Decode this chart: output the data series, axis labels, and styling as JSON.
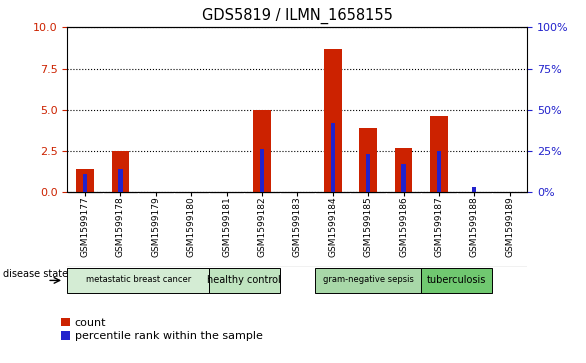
{
  "title": "GDS5819 / ILMN_1658155",
  "samples": [
    "GSM1599177",
    "GSM1599178",
    "GSM1599179",
    "GSM1599180",
    "GSM1599181",
    "GSM1599182",
    "GSM1599183",
    "GSM1599184",
    "GSM1599185",
    "GSM1599186",
    "GSM1599187",
    "GSM1599188",
    "GSM1599189"
  ],
  "counts": [
    1.4,
    2.5,
    0,
    0,
    0,
    5.0,
    0,
    8.7,
    3.9,
    2.7,
    4.6,
    0,
    0
  ],
  "percentiles": [
    11,
    14,
    0,
    0,
    0,
    26,
    0,
    42,
    23,
    17,
    25,
    3,
    0
  ],
  "disease_groups": [
    {
      "label": "metastatic breast cancer",
      "start": 0,
      "end": 3,
      "color": "#d4ecd4"
    },
    {
      "label": "healthy control",
      "start": 4,
      "end": 5,
      "color": "#c0e4c0"
    },
    {
      "label": "gram-negative sepsis",
      "start": 7,
      "end": 9,
      "color": "#a8d8a8"
    },
    {
      "label": "tuberculosis",
      "start": 10,
      "end": 11,
      "color": "#70c870"
    }
  ],
  "ylim_left": [
    0,
    10
  ],
  "ylim_right": [
    0,
    100
  ],
  "yticks_left": [
    0,
    2.5,
    5,
    7.5,
    10
  ],
  "yticks_right": [
    0,
    25,
    50,
    75,
    100
  ],
  "bar_color": "#cc2200",
  "percentile_color": "#2222cc",
  "sample_bg_color": "#d8d8d8",
  "plot_bg": "#ffffff",
  "tick_label_color_left": "#cc2200",
  "tick_label_color_right": "#2222cc",
  "legend_count_label": "count",
  "legend_percentile_label": "percentile rank within the sample",
  "disease_state_label": "disease state"
}
